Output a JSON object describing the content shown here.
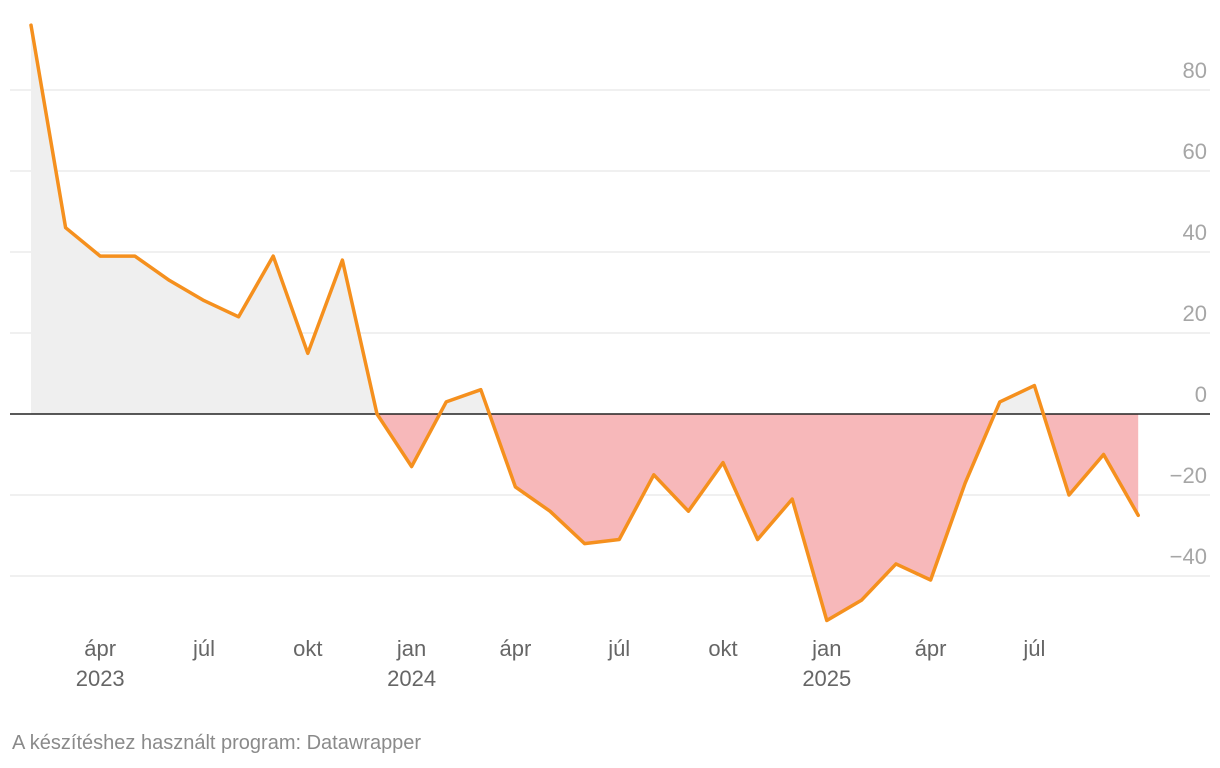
{
  "chart_data": {
    "type": "area",
    "title": "",
    "xlabel": "",
    "ylabel": "",
    "ylim": [
      -52,
      96
    ],
    "yticks": [
      80,
      60,
      40,
      20,
      0,
      -20,
      -40
    ],
    "ytick_labels": [
      "80",
      "60",
      "40",
      "20",
      "0",
      "−20",
      "−40"
    ],
    "x_labels": [
      {
        "index": 2,
        "month": "ápr",
        "year": "2023"
      },
      {
        "index": 5,
        "month": "júl",
        "year": ""
      },
      {
        "index": 8,
        "month": "okt",
        "year": ""
      },
      {
        "index": 11,
        "month": "jan",
        "year": "2024"
      },
      {
        "index": 14,
        "month": "ápr",
        "year": ""
      },
      {
        "index": 17,
        "month": "júl",
        "year": ""
      },
      {
        "index": 20,
        "month": "okt",
        "year": ""
      },
      {
        "index": 23,
        "month": "jan",
        "year": "2025"
      },
      {
        "index": 26,
        "month": "ápr",
        "year": ""
      },
      {
        "index": 29,
        "month": "júl",
        "year": ""
      }
    ],
    "series": [
      {
        "name": "value",
        "start": "2023-02",
        "values": [
          96,
          46,
          39,
          39,
          33,
          28,
          24,
          39,
          15,
          38,
          0,
          -13,
          3,
          6,
          -18,
          -24,
          -32,
          -31,
          -15,
          -24,
          -12,
          -31,
          -21,
          -51,
          -46,
          -37,
          -41,
          -17,
          3,
          7,
          -20,
          -10,
          -25
        ]
      }
    ],
    "colors": {
      "line": "#f5901e",
      "positive_fill": "#efefef",
      "negative_fill": "#f7b8ba",
      "zero_line": "#222222",
      "grid": "#e1e1e1"
    }
  },
  "footer": {
    "credit": "A készítéshez használt program: Datawrapper"
  }
}
